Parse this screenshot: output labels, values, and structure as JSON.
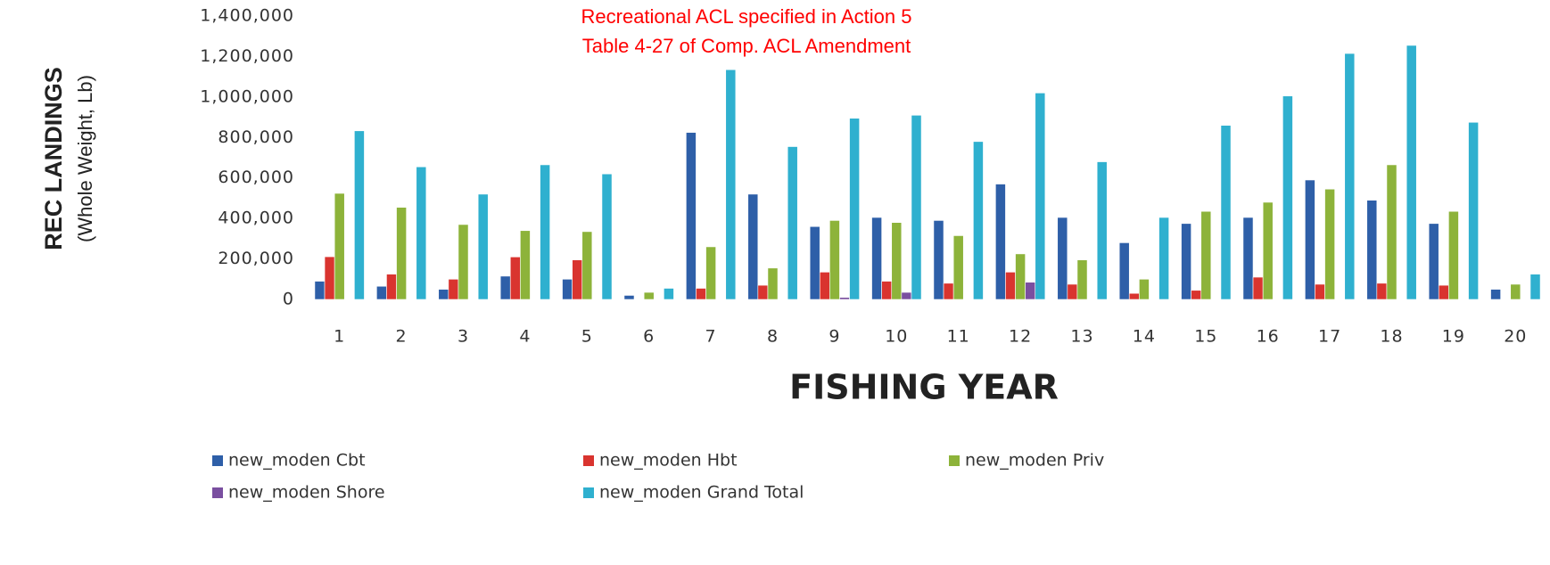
{
  "chart_data": {
    "type": "bar",
    "annotation": [
      "Recreational  ACL specified in Action 5",
      "Table 4-27 of Comp. ACL Amendment"
    ],
    "x_label": "FISHING YEAR",
    "y_label": [
      "REC LANDINGS",
      "(Whole Weight, Lb)"
    ],
    "categories": [
      "1",
      "2",
      "3",
      "4",
      "5",
      "6",
      "7",
      "8",
      "9",
      "10",
      "11",
      "12",
      "13",
      "14",
      "15",
      "16",
      "17",
      "18",
      "19",
      "20"
    ],
    "series": [
      {
        "name": "new_moden Cbt",
        "color": "#2e5fa8",
        "values": [
          90000,
          65000,
          50000,
          115000,
          100000,
          20000,
          825000,
          520000,
          360000,
          405000,
          390000,
          570000,
          405000,
          280000,
          375000,
          405000,
          590000,
          490000,
          375000,
          50000
        ]
      },
      {
        "name": "new_moden Hbt",
        "color": "#d9342f",
        "values": [
          211000,
          125000,
          100000,
          210000,
          195000,
          0,
          55000,
          70000,
          135000,
          90000,
          80000,
          135000,
          75000,
          30000,
          45000,
          110000,
          75000,
          80000,
          70000,
          0
        ]
      },
      {
        "name": "new_moden Priv",
        "color": "#8db33a",
        "values": [
          524000,
          455000,
          370000,
          340000,
          335000,
          35000,
          260000,
          155000,
          390000,
          380000,
          315000,
          225000,
          195000,
          100000,
          435000,
          480000,
          545000,
          665000,
          435000,
          75000
        ]
      },
      {
        "name": "new_moden Shore",
        "color": "#7a4fa0",
        "values": [
          0,
          0,
          0,
          0,
          0,
          0,
          0,
          0,
          10000,
          35000,
          0,
          85000,
          0,
          0,
          0,
          0,
          0,
          0,
          0,
          0
        ]
      },
      {
        "name": "new_moden Grand Total",
        "color": "#2fb0cf",
        "values": [
          833000,
          655000,
          520000,
          665000,
          620000,
          55000,
          1135000,
          755000,
          895000,
          910000,
          780000,
          1020000,
          680000,
          405000,
          860000,
          1005000,
          1215000,
          1255000,
          875000,
          125000
        ]
      }
    ],
    "ylim": [
      0,
      1400000
    ],
    "yticks": [
      0,
      {
        "value": 200000,
        "label": "200,000"
      },
      {
        "value": 400000,
        "label": "400,000"
      },
      {
        "value": 600000,
        "label": "600,000"
      },
      {
        "value": 800000,
        "label": "800,000"
      },
      {
        "value": 1000000,
        "label": "1,000,000"
      },
      {
        "value": 1200000,
        "label": "1,200,000"
      },
      {
        "value": 1400000,
        "label": "1,400,000"
      }
    ]
  }
}
